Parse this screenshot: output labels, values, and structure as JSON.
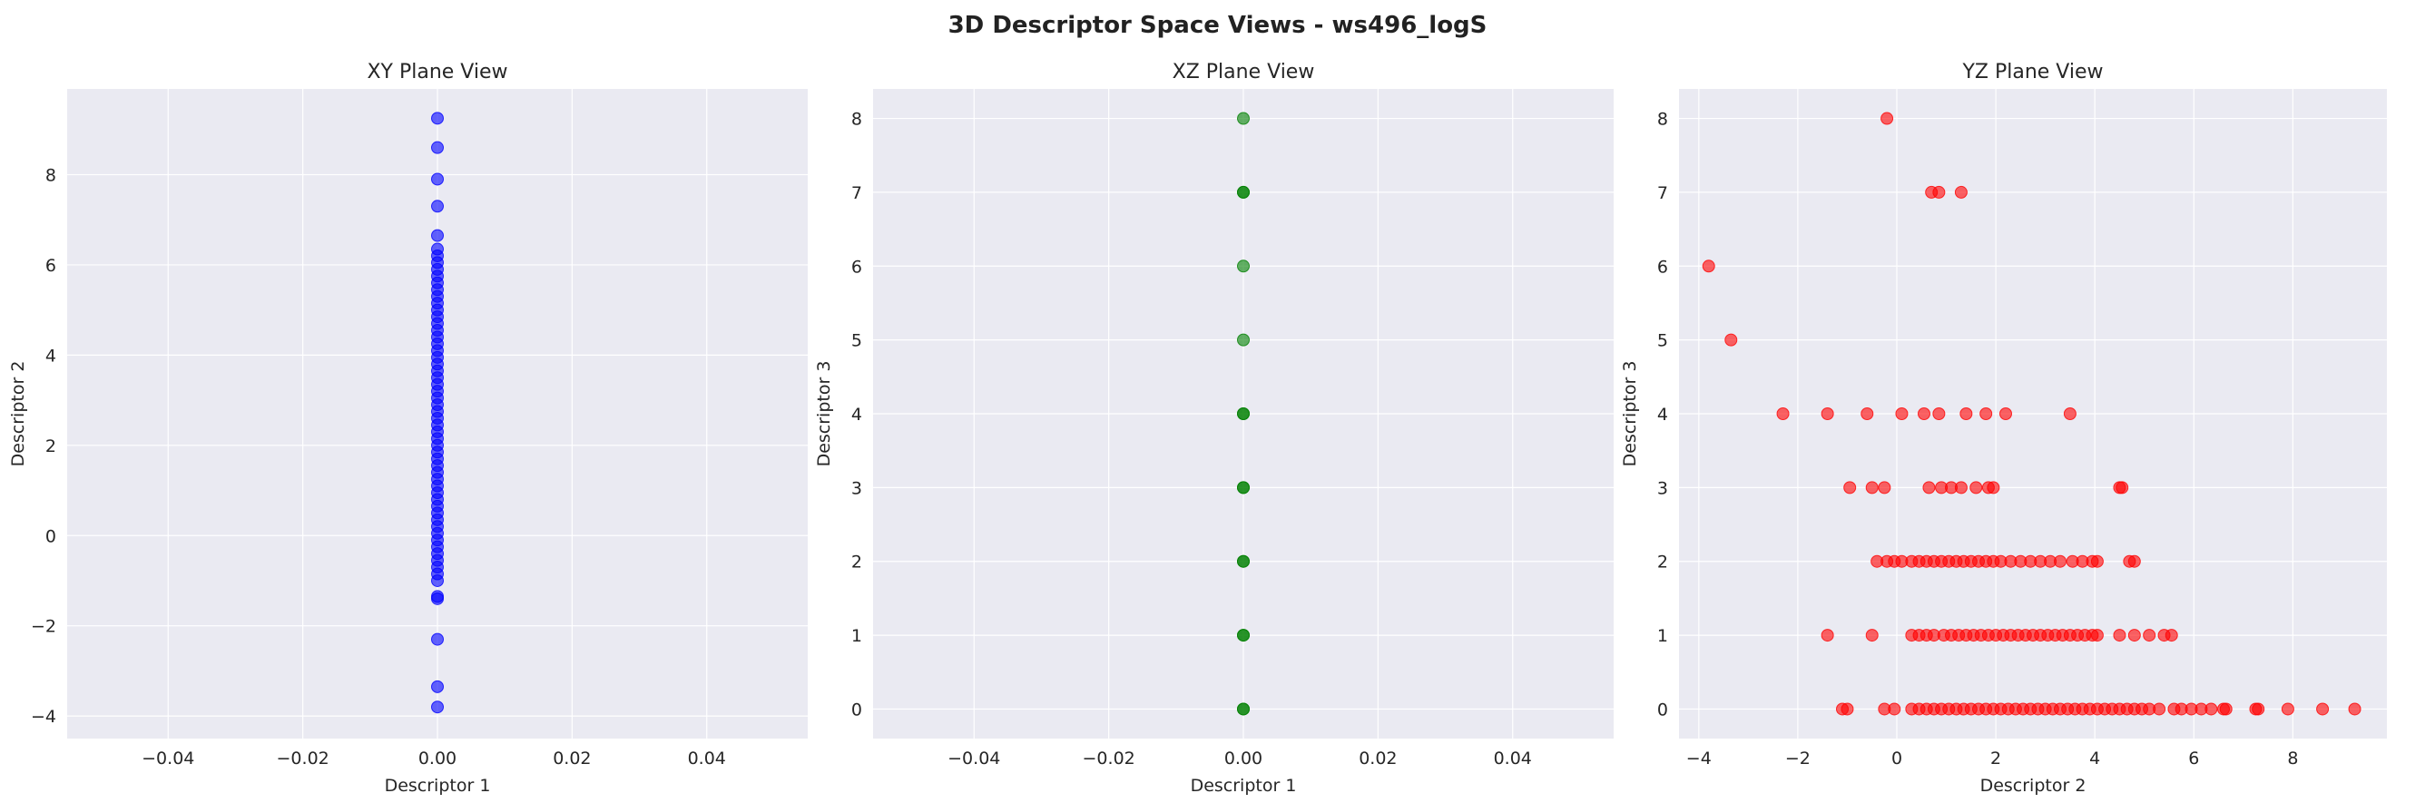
{
  "figure": {
    "title": "3D Descriptor Space Views - ws496_logS"
  },
  "chart_data": [
    {
      "type": "scatter",
      "title": "XY Plane View",
      "xlabel": "Descriptor 1",
      "ylabel": "Descriptor 2",
      "xlim": [
        -0.055,
        0.055
      ],
      "ylim": [
        -4.5,
        9.9
      ],
      "xticks": [
        -0.04,
        -0.02,
        0.0,
        0.02,
        0.04
      ],
      "xtick_labels": [
        "−0.04",
        "−0.02",
        "0.00",
        "0.02",
        "0.04"
      ],
      "yticks": [
        -4,
        -2,
        0,
        2,
        4,
        6,
        8
      ],
      "ytick_labels": [
        "−4",
        "−2",
        "0",
        "2",
        "4",
        "6",
        "8"
      ],
      "grid": true,
      "color": "#0000ff",
      "points": [
        [
          0,
          9.25
        ],
        [
          0,
          8.6
        ],
        [
          0,
          7.9
        ],
        [
          0,
          7.3
        ],
        [
          0,
          6.65
        ],
        [
          0,
          6.35
        ],
        [
          0,
          6.2
        ],
        [
          0,
          6.05
        ],
        [
          0,
          5.9
        ],
        [
          0,
          5.75
        ],
        [
          0,
          5.6
        ],
        [
          0,
          5.45
        ],
        [
          0,
          5.3
        ],
        [
          0,
          5.15
        ],
        [
          0,
          5.0
        ],
        [
          0,
          4.85
        ],
        [
          0,
          4.7
        ],
        [
          0,
          4.55
        ],
        [
          0,
          4.4
        ],
        [
          0,
          4.25
        ],
        [
          0,
          4.1
        ],
        [
          0,
          3.95
        ],
        [
          0,
          3.8
        ],
        [
          0,
          3.65
        ],
        [
          0,
          3.5
        ],
        [
          0,
          3.35
        ],
        [
          0,
          3.2
        ],
        [
          0,
          3.05
        ],
        [
          0,
          2.9
        ],
        [
          0,
          2.75
        ],
        [
          0,
          2.6
        ],
        [
          0,
          2.45
        ],
        [
          0,
          2.3
        ],
        [
          0,
          2.15
        ],
        [
          0,
          2.0
        ],
        [
          0,
          1.85
        ],
        [
          0,
          1.7
        ],
        [
          0,
          1.55
        ],
        [
          0,
          1.4
        ],
        [
          0,
          1.25
        ],
        [
          0,
          1.1
        ],
        [
          0,
          0.95
        ],
        [
          0,
          0.8
        ],
        [
          0,
          0.65
        ],
        [
          0,
          0.5
        ],
        [
          0,
          0.35
        ],
        [
          0,
          0.2
        ],
        [
          0,
          0.05
        ],
        [
          0,
          -0.1
        ],
        [
          0,
          -0.25
        ],
        [
          0,
          -0.4
        ],
        [
          0,
          -0.55
        ],
        [
          0,
          -0.7
        ],
        [
          0,
          -0.85
        ],
        [
          0,
          -1.0
        ],
        [
          0,
          -1.35
        ],
        [
          0,
          -1.4
        ],
        [
          0,
          -2.3
        ],
        [
          0,
          -3.35
        ],
        [
          0,
          -3.8
        ]
      ]
    },
    {
      "type": "scatter",
      "title": "XZ Plane View",
      "xlabel": "Descriptor 1",
      "ylabel": "Descriptor 3",
      "xlim": [
        -0.055,
        0.055
      ],
      "ylim": [
        -0.4,
        8.4
      ],
      "xticks": [
        -0.04,
        -0.02,
        0.0,
        0.02,
        0.04
      ],
      "xtick_labels": [
        "−0.04",
        "−0.02",
        "0.00",
        "0.02",
        "0.04"
      ],
      "yticks": [
        0,
        1,
        2,
        3,
        4,
        5,
        6,
        7,
        8
      ],
      "ytick_labels": [
        "0",
        "1",
        "2",
        "3",
        "4",
        "5",
        "6",
        "7",
        "8"
      ],
      "grid": true,
      "color": "#008000",
      "points": [
        [
          0,
          8
        ],
        [
          0,
          7
        ],
        [
          0,
          7
        ],
        [
          0,
          6
        ],
        [
          0,
          5
        ],
        [
          0,
          4
        ],
        [
          0,
          4
        ],
        [
          0,
          3
        ],
        [
          0,
          3
        ],
        [
          0,
          2
        ],
        [
          0,
          2
        ],
        [
          0,
          1
        ],
        [
          0,
          1
        ],
        [
          0,
          0
        ],
        [
          0,
          0
        ]
      ]
    },
    {
      "type": "scatter",
      "title": "YZ Plane View",
      "xlabel": "Descriptor 2",
      "ylabel": "Descriptor 3",
      "xlim": [
        -4.4,
        9.9
      ],
      "ylim": [
        -0.4,
        8.4
      ],
      "xticks": [
        -4,
        -2,
        0,
        2,
        4,
        6,
        8
      ],
      "xtick_labels": [
        "−4",
        "−2",
        "0",
        "2",
        "4",
        "6",
        "8"
      ],
      "yticks": [
        0,
        1,
        2,
        3,
        4,
        5,
        6,
        7,
        8
      ],
      "ytick_labels": [
        "0",
        "1",
        "2",
        "3",
        "4",
        "5",
        "6",
        "7",
        "8"
      ],
      "grid": true,
      "color": "#ff0000",
      "points": [
        [
          -0.2,
          8
        ],
        [
          0.7,
          7
        ],
        [
          0.85,
          7
        ],
        [
          1.3,
          7
        ],
        [
          -3.8,
          6
        ],
        [
          -3.35,
          5
        ],
        [
          -2.3,
          4
        ],
        [
          -1.4,
          4
        ],
        [
          -0.6,
          4
        ],
        [
          0.1,
          4
        ],
        [
          0.55,
          4
        ],
        [
          0.85,
          4
        ],
        [
          1.4,
          4
        ],
        [
          1.8,
          4
        ],
        [
          2.2,
          4
        ],
        [
          3.5,
          4
        ],
        [
          -0.95,
          3
        ],
        [
          -0.5,
          3
        ],
        [
          -0.25,
          3
        ],
        [
          0.65,
          3
        ],
        [
          0.9,
          3
        ],
        [
          1.1,
          3
        ],
        [
          1.3,
          3
        ],
        [
          1.6,
          3
        ],
        [
          1.85,
          3
        ],
        [
          1.95,
          3
        ],
        [
          4.5,
          3
        ],
        [
          4.55,
          3
        ],
        [
          -0.4,
          2
        ],
        [
          -0.2,
          2
        ],
        [
          -0.05,
          2
        ],
        [
          0.1,
          2
        ],
        [
          0.3,
          2
        ],
        [
          0.45,
          2
        ],
        [
          0.6,
          2
        ],
        [
          0.75,
          2
        ],
        [
          0.9,
          2
        ],
        [
          1.05,
          2
        ],
        [
          1.2,
          2
        ],
        [
          1.35,
          2
        ],
        [
          1.5,
          2
        ],
        [
          1.65,
          2
        ],
        [
          1.8,
          2
        ],
        [
          1.95,
          2
        ],
        [
          2.1,
          2
        ],
        [
          2.3,
          2
        ],
        [
          2.5,
          2
        ],
        [
          2.7,
          2
        ],
        [
          2.9,
          2
        ],
        [
          3.1,
          2
        ],
        [
          3.3,
          2
        ],
        [
          3.55,
          2
        ],
        [
          3.75,
          2
        ],
        [
          3.95,
          2
        ],
        [
          4.05,
          2
        ],
        [
          4.7,
          2
        ],
        [
          4.8,
          2
        ],
        [
          -1.4,
          1
        ],
        [
          -0.5,
          1
        ],
        [
          0.3,
          1
        ],
        [
          0.45,
          1
        ],
        [
          0.6,
          1
        ],
        [
          0.75,
          1
        ],
        [
          0.95,
          1
        ],
        [
          1.1,
          1
        ],
        [
          1.25,
          1
        ],
        [
          1.4,
          1
        ],
        [
          1.55,
          1
        ],
        [
          1.7,
          1
        ],
        [
          1.85,
          1
        ],
        [
          2.0,
          1
        ],
        [
          2.15,
          1
        ],
        [
          2.3,
          1
        ],
        [
          2.45,
          1
        ],
        [
          2.6,
          1
        ],
        [
          2.75,
          1
        ],
        [
          2.9,
          1
        ],
        [
          3.05,
          1
        ],
        [
          3.2,
          1
        ],
        [
          3.35,
          1
        ],
        [
          3.5,
          1
        ],
        [
          3.65,
          1
        ],
        [
          3.8,
          1
        ],
        [
          3.95,
          1
        ],
        [
          4.05,
          1
        ],
        [
          4.5,
          1
        ],
        [
          4.8,
          1
        ],
        [
          5.1,
          1
        ],
        [
          5.4,
          1
        ],
        [
          5.55,
          1
        ],
        [
          -1.1,
          0
        ],
        [
          -1.0,
          0
        ],
        [
          -0.25,
          0
        ],
        [
          -0.05,
          0
        ],
        [
          0.3,
          0
        ],
        [
          0.45,
          0
        ],
        [
          0.6,
          0
        ],
        [
          0.75,
          0
        ],
        [
          0.9,
          0
        ],
        [
          1.05,
          0
        ],
        [
          1.2,
          0
        ],
        [
          1.35,
          0
        ],
        [
          1.5,
          0
        ],
        [
          1.65,
          0
        ],
        [
          1.8,
          0
        ],
        [
          1.95,
          0
        ],
        [
          2.1,
          0
        ],
        [
          2.25,
          0
        ],
        [
          2.4,
          0
        ],
        [
          2.55,
          0
        ],
        [
          2.7,
          0
        ],
        [
          2.85,
          0
        ],
        [
          3.0,
          0
        ],
        [
          3.15,
          0
        ],
        [
          3.3,
          0
        ],
        [
          3.45,
          0
        ],
        [
          3.6,
          0
        ],
        [
          3.75,
          0
        ],
        [
          3.9,
          0
        ],
        [
          4.05,
          0
        ],
        [
          4.2,
          0
        ],
        [
          4.35,
          0
        ],
        [
          4.5,
          0
        ],
        [
          4.65,
          0
        ],
        [
          4.8,
          0
        ],
        [
          4.95,
          0
        ],
        [
          5.1,
          0
        ],
        [
          5.3,
          0
        ],
        [
          5.6,
          0
        ],
        [
          5.75,
          0
        ],
        [
          5.95,
          0
        ],
        [
          6.15,
          0
        ],
        [
          6.35,
          0
        ],
        [
          6.6,
          0
        ],
        [
          6.65,
          0
        ],
        [
          7.25,
          0
        ],
        [
          7.3,
          0
        ],
        [
          7.9,
          0
        ],
        [
          8.6,
          0
        ],
        [
          9.25,
          0
        ]
      ]
    }
  ]
}
